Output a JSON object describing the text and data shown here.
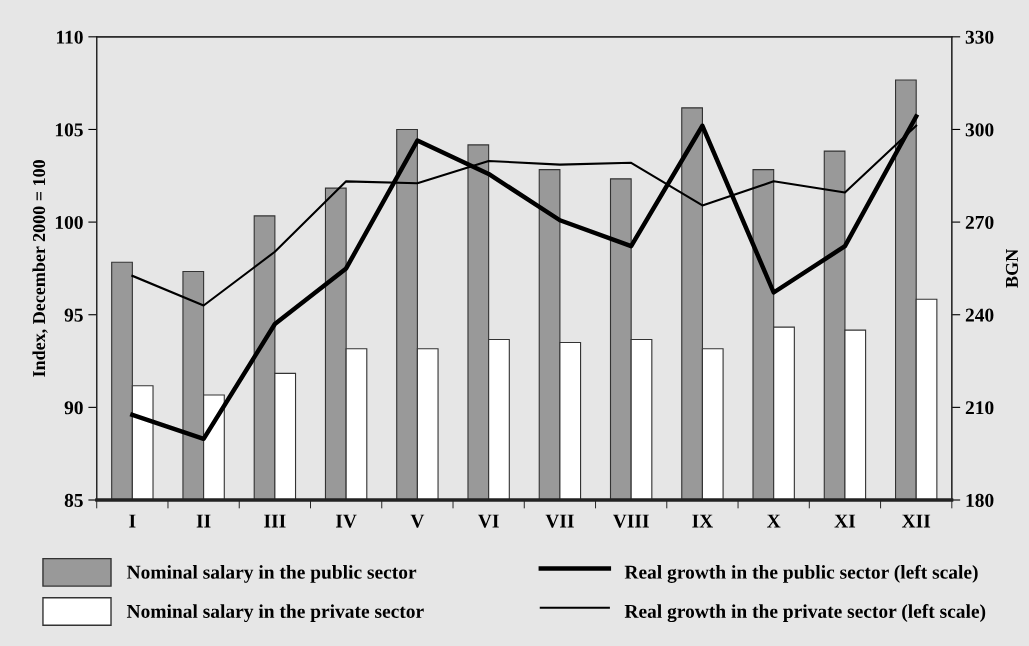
{
  "chart_data": {
    "type": "bar",
    "ylabel": "Index, December 2000 = 100",
    "y2label": "BGN",
    "categories": [
      "I",
      "II",
      "III",
      "IV",
      "V",
      "VI",
      "VII",
      "VIII",
      "IX",
      "X",
      "XI",
      "XII"
    ],
    "series": [
      {
        "name": "Nominal salary in the public sector",
        "axis": "y2",
        "color": "#999999",
        "values": [
          257,
          254,
          272,
          281,
          300,
          295,
          287,
          284,
          307,
          287,
          293,
          316
        ]
      },
      {
        "name": "Nominal salary in the private sector",
        "axis": "y2",
        "color": "#ffffff",
        "values": [
          217,
          214,
          221,
          229,
          229,
          232,
          231,
          232,
          229,
          236,
          235,
          245
        ]
      },
      {
        "name": "Real growth in the public sector (left scale)",
        "type": "line",
        "color": "#000000",
        "values": [
          89.6,
          88.3,
          94.5,
          97.5,
          104.4,
          102.6,
          100.1,
          98.7,
          105.2,
          96.2,
          98.7,
          105.7
        ]
      },
      {
        "name": "Real growth in the private sector (left scale)",
        "type": "line",
        "color": "#000000",
        "values": [
          97.1,
          95.5,
          98.4,
          102.2,
          102.1,
          103.3,
          103.1,
          103.2,
          100.9,
          102.2,
          101.6,
          105.2
        ]
      }
    ],
    "ylim": [
      85,
      110
    ],
    "yticks": [
      85,
      90,
      95,
      100,
      105,
      110
    ],
    "y2lim": [
      180,
      330
    ],
    "y2ticks": [
      180,
      210,
      240,
      270,
      300,
      330
    ],
    "legend": "bottom"
  }
}
